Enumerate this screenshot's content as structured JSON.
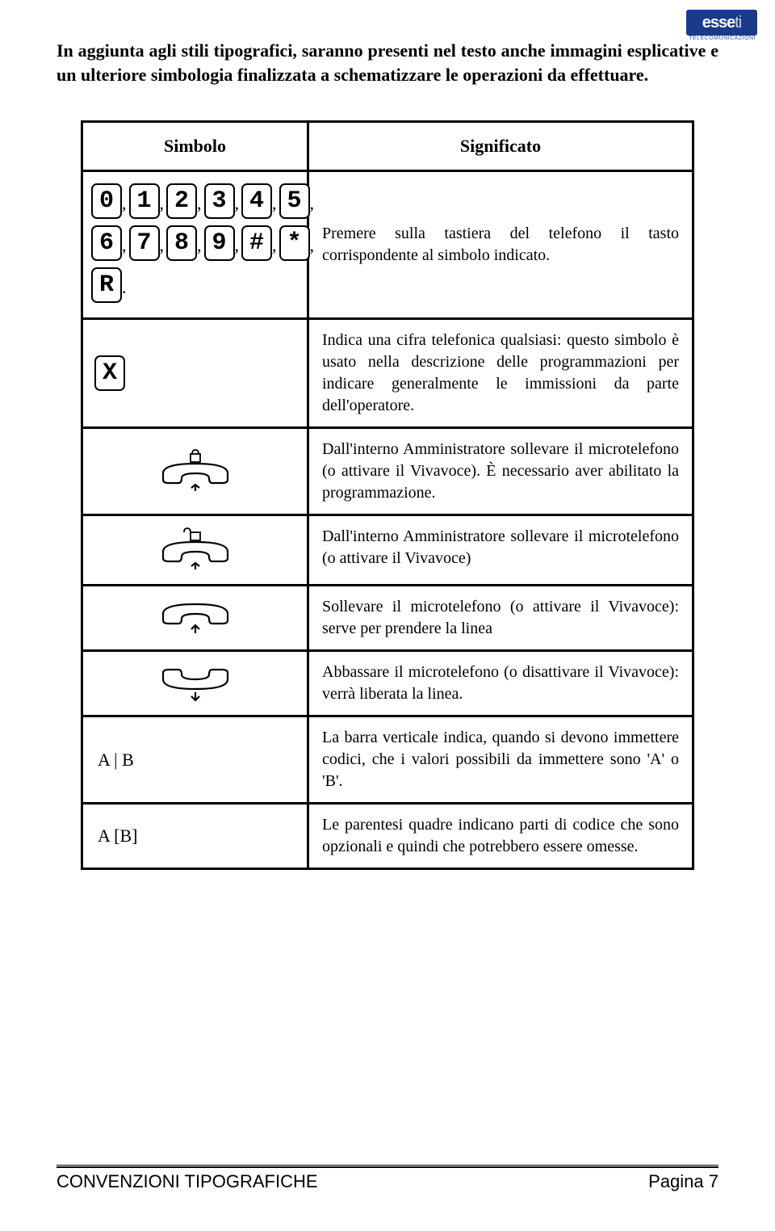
{
  "logo": {
    "brand": "esse",
    "suffix": "ti",
    "sub": "TELECOMUNICAZIONI"
  },
  "intro": "In aggiunta agli stili tipografici, saranno presenti nel testo anche immagini esplicative e un ulteriore simbologia finalizzata a schematizzare le operazioni da effettuare.",
  "table": {
    "header": {
      "left": "Simbolo",
      "right": "Significato"
    },
    "keys": [
      "0",
      "1",
      "2",
      "3",
      "4",
      "5",
      "6",
      "7",
      "8",
      "9",
      "#",
      "*",
      "R"
    ],
    "rows": [
      {
        "symbol_type": "keys",
        "desc": "Premere sulla tastiera del telefono il tasto corrispondente al simbolo indicato."
      },
      {
        "symbol_type": "xkey",
        "key": "X",
        "desc": "Indica una cifra telefonica qualsiasi: questo simbolo è usato nella descrizione delle programmazioni per indicare generalmente le immissioni da parte dell'operatore."
      },
      {
        "symbol_type": "handset-up-lock-closed",
        "desc": "Dall'interno Amministratore sollevare il microtelefono (o attivare il Vivavoce). È necessario aver abilitato la programmazione."
      },
      {
        "symbol_type": "handset-up-lock-open",
        "desc": "Dall'interno Amministratore sollevare il microtelefono (o attivare il Vivavoce)"
      },
      {
        "symbol_type": "handset-up",
        "desc": "Sollevare il microtelefono (o attivare il Vivavoce): serve per prendere la linea"
      },
      {
        "symbol_type": "handset-down",
        "desc": "Abbassare il microtelefono (o disattivare il Vivavoce): verrà liberata la linea."
      },
      {
        "symbol_type": "text",
        "text": "A | B",
        "desc": "La barra verticale indica, quando si devono immettere codici, che i valori possibili da immettere sono 'A' o 'B'."
      },
      {
        "symbol_type": "text",
        "text": "A [B]",
        "desc": "Le parentesi quadre indicano parti di codice che sono opzionali e quindi che potrebbero essere omesse."
      }
    ]
  },
  "footer": {
    "left": "CONVENZIONI TIPOGRAFICHE",
    "right": "Pagina 7"
  }
}
